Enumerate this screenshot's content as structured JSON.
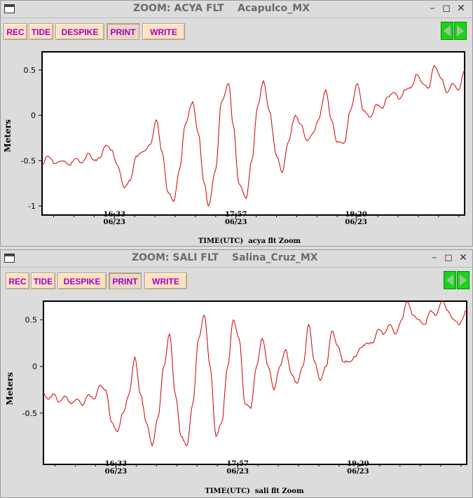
{
  "windows": [
    {
      "title": "ZOOM: ACYA FLT",
      "station": "Acapulco_MX",
      "buttons": {
        "rec": "REC",
        "tide": "TIDE",
        "despike": "DESPIKE",
        "print": "PRINT",
        "write": "WRITE"
      },
      "xlabel": "TIME(UTC)  acya flt Zoom",
      "ylabel": "Meters",
      "yticks": [
        "0.5",
        "0",
        "-0.5",
        "-1"
      ],
      "xticks": [
        {
          "time": "16:33",
          "date": "06/23"
        },
        {
          "time": "17:57",
          "date": "06/23"
        },
        {
          "time": "19:20",
          "date": "06/23"
        }
      ]
    },
    {
      "title": "ZOOM: SALI FLT",
      "station": "Salina_Cruz_MX",
      "buttons": {
        "rec": "REC",
        "tide": "TIDE",
        "despike": "DESPIKE",
        "print": "PRINT",
        "write": "WRITE"
      },
      "xlabel": "TIME(UTC)  sali flt Zoom",
      "ylabel": "Meters",
      "yticks": [
        "0.5",
        "0",
        "-0.5"
      ],
      "xticks": [
        {
          "time": "16:33",
          "date": "06/23"
        },
        {
          "time": "17:57",
          "date": "06/23"
        },
        {
          "time": "19:20",
          "date": "06/23"
        }
      ]
    }
  ],
  "colors": {
    "trace": "#cc0000",
    "button_bg": "#ffe2c2",
    "button_text": "#a000c8",
    "arrow": "#19d419"
  },
  "icons": {
    "minimize": "minimize-icon",
    "maximize": "maximize-icon",
    "close": "close-icon",
    "prev": "left-arrow-icon",
    "next": "right-arrow-icon"
  },
  "chart_data": [
    {
      "type": "line",
      "title": "ACYA FLT",
      "xlabel": "TIME(UTC)  acya flt Zoom",
      "ylabel": "Meters",
      "ylim": [
        -1.1,
        0.7
      ],
      "x_ticks": [
        "16:33",
        "17:57",
        "19:20"
      ],
      "x_domain": [
        "15:43",
        "20:35"
      ],
      "series": [
        {
          "x": [
            "15:43",
            "15:47",
            "15:52",
            "15:57",
            "16:02",
            "16:06",
            "16:11",
            "16:15",
            "16:19",
            "16:23",
            "16:27",
            "16:31",
            "16:35",
            "16:40",
            "16:44",
            "16:48",
            "16:53",
            "16:58",
            "17:02",
            "17:06",
            "17:10",
            "17:14",
            "17:18",
            "17:22",
            "17:27",
            "17:31",
            "17:35",
            "17:38",
            "17:43",
            "17:47",
            "17:52",
            "17:55",
            "17:59",
            "18:04",
            "18:08",
            "18:12",
            "18:16",
            "18:20",
            "18:25",
            "18:29",
            "18:33",
            "18:38",
            "18:42",
            "18:46",
            "18:50",
            "18:54",
            "18:59",
            "19:03",
            "19:07",
            "19:12",
            "19:16",
            "19:21",
            "19:25",
            "19:30",
            "19:34",
            "19:38",
            "19:42",
            "19:46",
            "19:50",
            "19:54",
            "19:58",
            "20:02",
            "20:06",
            "20:10",
            "20:14",
            "20:19",
            "20:23",
            "20:27",
            "20:31",
            "20:35"
          ],
          "y": [
            -0.55,
            -0.45,
            -0.53,
            -0.5,
            -0.55,
            -0.48,
            -0.52,
            -0.42,
            -0.5,
            -0.47,
            -0.33,
            -0.38,
            -0.55,
            -0.8,
            -0.72,
            -0.45,
            -0.4,
            -0.32,
            -0.05,
            -0.4,
            -0.85,
            -0.95,
            -0.6,
            -0.1,
            0.15,
            -0.2,
            -0.75,
            -1.0,
            -0.6,
            0.15,
            0.35,
            -0.1,
            -0.75,
            -0.92,
            -0.5,
            0.1,
            0.38,
            0.05,
            -0.45,
            -0.63,
            -0.3,
            0.0,
            -0.1,
            -0.28,
            -0.2,
            -0.05,
            0.28,
            -0.05,
            -0.3,
            -0.3,
            0.05,
            0.35,
            0.05,
            -0.02,
            0.12,
            0.08,
            0.2,
            0.25,
            0.18,
            0.28,
            0.3,
            0.45,
            0.35,
            0.3,
            0.55,
            0.4,
            0.25,
            0.35,
            0.28,
            0.5
          ]
        }
      ]
    },
    {
      "type": "line",
      "title": "SALI FLT",
      "xlabel": "TIME(UTC)  sali flt Zoom",
      "ylabel": "Meters",
      "ylim": [
        -1.05,
        0.7
      ],
      "x_ticks": [
        "16:33",
        "17:57",
        "19:20"
      ],
      "x_domain": [
        "15:43",
        "20:35"
      ],
      "series": [
        {
          "x": [
            "15:43",
            "15:46",
            "15:50",
            "15:54",
            "15:58",
            "16:02",
            "16:06",
            "16:10",
            "16:14",
            "16:18",
            "16:22",
            "16:26",
            "16:30",
            "16:34",
            "16:38",
            "16:42",
            "16:46",
            "16:50",
            "16:54",
            "16:58",
            "17:02",
            "17:06",
            "17:10",
            "17:14",
            "17:18",
            "17:22",
            "17:26",
            "17:30",
            "17:34",
            "17:38",
            "17:42",
            "17:46",
            "17:50",
            "17:54",
            "17:58",
            "18:02",
            "18:06",
            "18:10",
            "18:14",
            "18:18",
            "18:22",
            "18:26",
            "18:30",
            "18:34",
            "18:38",
            "18:42",
            "18:46",
            "18:50",
            "18:54",
            "18:58",
            "19:02",
            "19:06",
            "19:10",
            "19:14",
            "19:18",
            "19:22",
            "19:26",
            "19:30",
            "19:34",
            "19:38",
            "19:42",
            "19:46",
            "19:50",
            "19:54",
            "19:58",
            "20:02",
            "20:06",
            "20:10",
            "20:14",
            "20:18",
            "20:22",
            "20:26",
            "20:30",
            "20:35"
          ],
          "y": [
            -0.3,
            -0.35,
            -0.3,
            -0.38,
            -0.32,
            -0.4,
            -0.35,
            -0.42,
            -0.3,
            -0.35,
            -0.2,
            -0.25,
            -0.6,
            -0.7,
            -0.5,
            -0.3,
            0.1,
            -0.3,
            -0.6,
            -0.85,
            -0.55,
            0.0,
            0.35,
            -0.3,
            -0.75,
            -0.85,
            -0.4,
            0.3,
            0.55,
            0.0,
            -0.75,
            -0.6,
            0.0,
            0.5,
            0.3,
            -0.4,
            -0.45,
            0.0,
            0.3,
            0.0,
            -0.25,
            0.0,
            0.18,
            -0.08,
            -0.18,
            0.0,
            0.45,
            0.05,
            -0.15,
            0.0,
            0.38,
            0.22,
            0.05,
            0.05,
            0.1,
            0.2,
            0.25,
            0.25,
            0.4,
            0.35,
            0.45,
            0.35,
            0.5,
            0.7,
            0.55,
            0.5,
            0.45,
            0.6,
            0.55,
            0.7,
            0.6,
            0.5,
            0.45,
            0.6
          ]
        }
      ]
    }
  ]
}
